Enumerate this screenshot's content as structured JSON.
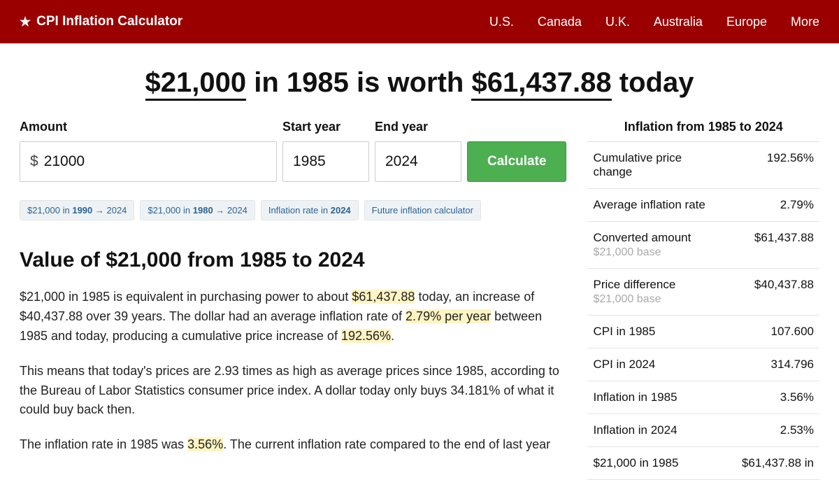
{
  "colors": {
    "header_bg": "#9a0000",
    "button_bg": "#4caf50",
    "highlight": "#fff4c2",
    "chip_bg": "#eef2f5",
    "chip_text": "#2a6496"
  },
  "header": {
    "logo_text": "CPI Inflation Calculator",
    "nav": [
      "U.S.",
      "Canada",
      "U.K.",
      "Australia",
      "Europe",
      "More"
    ]
  },
  "title": {
    "amount_from": "$21,000",
    "mid1": " in 1985 is worth ",
    "amount_to": "$61,437.88",
    "mid2": " today"
  },
  "form": {
    "amount_label": "Amount",
    "amount_value": "21000",
    "start_label": "Start year",
    "start_value": "1985",
    "end_label": "End year",
    "end_value": "2024",
    "button": "Calculate"
  },
  "chips": [
    {
      "pre": "$21,000 in ",
      "bold": "1990",
      "post": " → 2024"
    },
    {
      "pre": "$21,000 in ",
      "bold": "1980",
      "post": " → 2024"
    },
    {
      "pre": "Inflation rate in ",
      "bold": "2024",
      "post": ""
    },
    {
      "pre": "Future inflation calculator",
      "bold": "",
      "post": ""
    }
  ],
  "section_title": "Value of $21,000 from 1985 to 2024",
  "p1": {
    "a": "$21,000 in 1985 is equivalent in purchasing power to about ",
    "h1": "$61,437.88",
    "b": " today, an increase of $40,437.88 over 39 years. The dollar had an average inflation rate of ",
    "h2": "2.79% per year",
    "c": " between 1985 and today, producing a cumulative price increase of ",
    "h3": "192.56%",
    "d": "."
  },
  "p2": "This means that today's prices are 2.93 times as high as average prices since 1985, according to the Bureau of Labor Statistics consumer price index. A dollar today only buys 34.181% of what it could buy back then.",
  "p3": {
    "a": "The inflation rate in 1985 was ",
    "h1": "3.56%",
    "b": ". The current inflation rate compared to the end of last year"
  },
  "sidebar": {
    "title": "Inflation from 1985 to 2024",
    "rows": [
      {
        "label": "Cumulative price change",
        "sub": "",
        "value": "192.56%"
      },
      {
        "label": "Average inflation rate",
        "sub": "",
        "value": "2.79%"
      },
      {
        "label": "Converted amount",
        "sub": "$21,000 base",
        "value": "$61,437.88"
      },
      {
        "label": "Price difference",
        "sub": "$21,000 base",
        "value": "$40,437.88"
      },
      {
        "label": "CPI in 1985",
        "sub": "",
        "value": "107.600"
      },
      {
        "label": "CPI in 2024",
        "sub": "",
        "value": "314.796"
      },
      {
        "label": "Inflation in 1985",
        "sub": "",
        "value": "3.56%"
      },
      {
        "label": "Inflation in 2024",
        "sub": "",
        "value": "2.53%"
      },
      {
        "label": "$21,000 in 1985",
        "sub": "",
        "value": "$61,437.88 in"
      }
    ]
  }
}
